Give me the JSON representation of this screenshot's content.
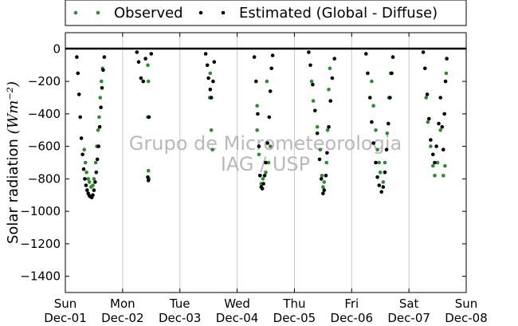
{
  "chart_data": {
    "type": "scatter",
    "ylabel": "Solar radiation",
    "ylabel_unit": "(Wm⁻²)",
    "ylim": [
      -1500,
      100
    ],
    "yticks": [
      0,
      -200,
      -400,
      -600,
      -800,
      -1000,
      -1200,
      -1400
    ],
    "xlim": [
      0,
      7
    ],
    "xtick_days": [
      "Sun",
      "Mon",
      "Tue",
      "Wed",
      "Thu",
      "Fri",
      "Sat",
      "Sun"
    ],
    "xtick_dates": [
      "Dec-01",
      "Dec-02",
      "Dec-03",
      "Dec-04",
      "Dec-05",
      "Dec-06",
      "Dec-07",
      "Dec-08"
    ],
    "grid": "vertical",
    "legend_position": "top-center-outside",
    "watermark": [
      "Grupo de Micrometeorologia",
      "IAG / USP"
    ],
    "series": [
      {
        "name": "Observed",
        "color": "#2e8b2e",
        "points": [
          [
            0.33,
            -620
          ],
          [
            0.35,
            -700
          ],
          [
            0.37,
            -760
          ],
          [
            0.4,
            -800
          ],
          [
            0.42,
            -820
          ],
          [
            0.45,
            -850
          ],
          [
            0.48,
            -840
          ],
          [
            0.5,
            -800
          ],
          [
            0.53,
            -700
          ],
          [
            0.55,
            -600
          ],
          [
            0.57,
            -500
          ],
          [
            0.59,
            -420
          ],
          [
            0.61,
            -300
          ],
          [
            0.63,
            -200
          ],
          [
            0.65,
            -120
          ],
          [
            1.44,
            -100
          ],
          [
            1.45,
            -200
          ],
          [
            1.44,
            -420
          ],
          [
            1.45,
            -750
          ],
          [
            1.46,
            -800
          ],
          [
            2.52,
            -300
          ],
          [
            2.55,
            -500
          ],
          [
            2.57,
            -620
          ],
          [
            2.53,
            -150
          ],
          [
            3.35,
            -500
          ],
          [
            3.38,
            -650
          ],
          [
            3.4,
            -780
          ],
          [
            3.42,
            -830
          ],
          [
            3.45,
            -800
          ],
          [
            3.5,
            -760
          ],
          [
            3.55,
            -700
          ],
          [
            3.58,
            -600
          ],
          [
            3.35,
            -350
          ],
          [
            3.52,
            -200
          ],
          [
            4.3,
            -200
          ],
          [
            4.33,
            -320
          ],
          [
            4.4,
            -480
          ],
          [
            4.45,
            -620
          ],
          [
            4.48,
            -780
          ],
          [
            4.5,
            -850
          ],
          [
            4.52,
            -820
          ],
          [
            4.56,
            -700
          ],
          [
            4.58,
            -500
          ],
          [
            4.6,
            -250
          ],
          [
            4.62,
            -120
          ],
          [
            5.35,
            -200
          ],
          [
            5.38,
            -350
          ],
          [
            5.42,
            -500
          ],
          [
            5.45,
            -620
          ],
          [
            5.48,
            -700
          ],
          [
            5.5,
            -760
          ],
          [
            5.55,
            -820
          ],
          [
            5.58,
            -700
          ],
          [
            5.62,
            -520
          ],
          [
            5.65,
            -300
          ],
          [
            5.68,
            -150
          ],
          [
            6.3,
            -300
          ],
          [
            6.33,
            -450
          ],
          [
            6.38,
            -600
          ],
          [
            6.42,
            -720
          ],
          [
            6.45,
            -780
          ],
          [
            6.5,
            -700
          ],
          [
            6.55,
            -500
          ],
          [
            6.6,
            -780
          ],
          [
            6.63,
            -720
          ],
          [
            6.65,
            -150
          ]
        ]
      },
      {
        "name": "Estimated (Global - Diffuse)",
        "color": "#000000",
        "points": [
          [
            0.2,
            -50
          ],
          [
            0.22,
            -150
          ],
          [
            0.24,
            -280
          ],
          [
            0.26,
            -420
          ],
          [
            0.28,
            -550
          ],
          [
            0.3,
            -650
          ],
          [
            0.32,
            -740
          ],
          [
            0.34,
            -800
          ],
          [
            0.36,
            -840
          ],
          [
            0.38,
            -870
          ],
          [
            0.4,
            -890
          ],
          [
            0.42,
            -905
          ],
          [
            0.44,
            -910
          ],
          [
            0.46,
            -915
          ],
          [
            0.48,
            -900
          ],
          [
            0.5,
            -870
          ],
          [
            0.52,
            -820
          ],
          [
            0.54,
            -760
          ],
          [
            0.56,
            -680
          ],
          [
            0.58,
            -600
          ],
          [
            0.6,
            -480
          ],
          [
            0.62,
            -360
          ],
          [
            0.64,
            -240
          ],
          [
            0.66,
            -130
          ],
          [
            0.68,
            -50
          ],
          [
            1.25,
            -20
          ],
          [
            1.28,
            -80
          ],
          [
            1.32,
            -180
          ],
          [
            1.36,
            -200
          ],
          [
            1.4,
            -60
          ],
          [
            1.44,
            -790
          ],
          [
            1.45,
            -810
          ],
          [
            1.46,
            -420
          ],
          [
            1.5,
            -30
          ],
          [
            2.45,
            -30
          ],
          [
            2.48,
            -100
          ],
          [
            2.5,
            -180
          ],
          [
            2.53,
            -250
          ],
          [
            2.55,
            -300
          ],
          [
            2.58,
            -200
          ],
          [
            2.6,
            -80
          ],
          [
            3.3,
            -50
          ],
          [
            3.33,
            -200
          ],
          [
            3.36,
            -400
          ],
          [
            3.38,
            -600
          ],
          [
            3.4,
            -780
          ],
          [
            3.42,
            -850
          ],
          [
            3.44,
            -860
          ],
          [
            3.46,
            -830
          ],
          [
            3.48,
            -780
          ],
          [
            3.5,
            -700
          ],
          [
            3.53,
            -580
          ],
          [
            3.56,
            -420
          ],
          [
            3.58,
            -260
          ],
          [
            3.6,
            -120
          ],
          [
            3.62,
            -40
          ],
          [
            4.25,
            -20
          ],
          [
            4.28,
            -100
          ],
          [
            4.32,
            -220
          ],
          [
            4.36,
            -380
          ],
          [
            4.4,
            -520
          ],
          [
            4.44,
            -680
          ],
          [
            4.47,
            -800
          ],
          [
            4.5,
            -890
          ],
          [
            4.52,
            -870
          ],
          [
            4.55,
            -780
          ],
          [
            4.57,
            -640
          ],
          [
            4.6,
            -480
          ],
          [
            4.63,
            -320
          ],
          [
            4.66,
            -180
          ],
          [
            4.7,
            -60
          ],
          [
            5.25,
            -30
          ],
          [
            5.28,
            -150
          ],
          [
            5.32,
            -300
          ],
          [
            5.35,
            -450
          ],
          [
            5.38,
            -580
          ],
          [
            5.42,
            -700
          ],
          [
            5.45,
            -790
          ],
          [
            5.48,
            -840
          ],
          [
            5.52,
            -880
          ],
          [
            5.55,
            -850
          ],
          [
            5.58,
            -760
          ],
          [
            5.61,
            -620
          ],
          [
            5.64,
            -460
          ],
          [
            5.67,
            -300
          ],
          [
            5.7,
            -150
          ],
          [
            5.72,
            -50
          ],
          [
            6.25,
            -20
          ],
          [
            6.28,
            -120
          ],
          [
            6.32,
            -280
          ],
          [
            6.35,
            -430
          ],
          [
            6.38,
            -560
          ],
          [
            6.42,
            -650
          ],
          [
            6.45,
            -700
          ],
          [
            6.48,
            -600
          ],
          [
            6.52,
            -460
          ],
          [
            6.55,
            -300
          ],
          [
            6.58,
            -480
          ],
          [
            6.6,
            -620
          ],
          [
            6.62,
            -400
          ],
          [
            6.64,
            -200
          ],
          [
            6.66,
            -60
          ]
        ]
      }
    ]
  }
}
